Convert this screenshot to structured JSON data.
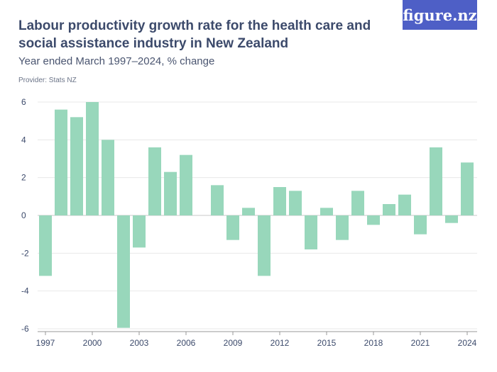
{
  "header": {
    "title": "Labour productivity growth rate for the health care and social assistance industry in New Zealand",
    "subtitle": "Year ended March 1997–2024, % change",
    "provider": "Provider: Stats NZ",
    "logo": "figure.nz"
  },
  "chart_data": {
    "type": "bar",
    "title": "Labour productivity growth rate for the health care and social assistance industry in New Zealand",
    "xlabel": "",
    "ylabel": "% change",
    "ylim": [
      -6,
      6
    ],
    "yticks": [
      "6",
      "4",
      "2",
      "0",
      "-2",
      "-4",
      "-6"
    ],
    "xticks": [
      "1997",
      "2000",
      "2003",
      "2006",
      "2009",
      "2012",
      "2015",
      "2018",
      "2021",
      "2024"
    ],
    "categories": [
      1997,
      1998,
      1999,
      2000,
      2001,
      2002,
      2003,
      2004,
      2005,
      2006,
      2007,
      2008,
      2009,
      2010,
      2011,
      2012,
      2013,
      2014,
      2015,
      2016,
      2017,
      2018,
      2019,
      2020,
      2021,
      2022,
      2023,
      2024
    ],
    "values": [
      -3.2,
      5.6,
      5.2,
      6.0,
      4.0,
      -5.95,
      -1.7,
      3.6,
      2.3,
      3.2,
      null,
      1.6,
      -1.3,
      0.4,
      -3.2,
      1.5,
      1.3,
      -1.8,
      0.4,
      -1.3,
      1.3,
      -0.5,
      0.6,
      1.1,
      -1.0,
      3.6,
      -0.4,
      2.8
    ],
    "bar_color": "#98d7bb",
    "grid": true
  }
}
